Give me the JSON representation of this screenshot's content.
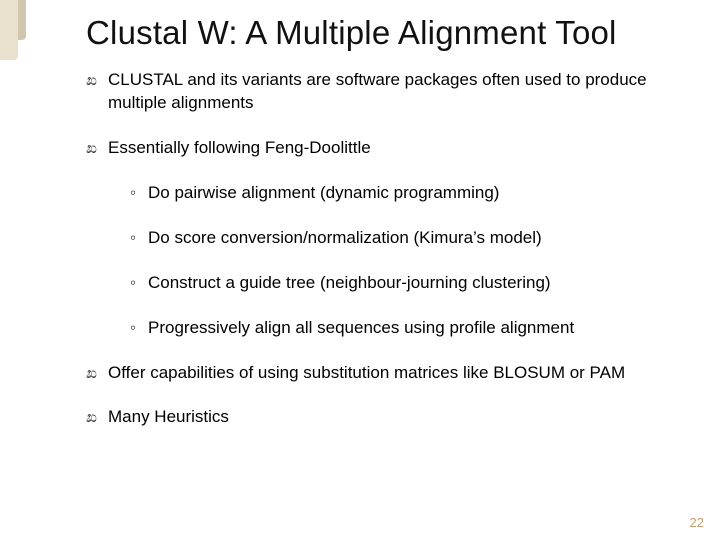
{
  "title": "Clustal W: A Multiple Alignment Tool",
  "bullets": {
    "b0": "CLUSTAL and its variants are software packages often used to produce multiple alignments",
    "b1": "Essentially following Feng-Doolittle",
    "b1_sub": {
      "s0": "Do pairwise alignment (dynamic programming)",
      "s1": "Do score conversion/normalization (Kimura’s model)",
      "s2": "Construct a guide tree (neighbour-journing clustering)",
      "s3": "Progressively align all sequences using profile alignment"
    },
    "b2": "Offer capabilities of using substitution matrices like BLOSUM or PAM",
    "b3": "Many Heuristics"
  },
  "glyphs": {
    "level1": "ಖ",
    "level2": "◦"
  },
  "page_number": "22",
  "colors": {
    "background": "#ffffff",
    "text": "#000000",
    "pagenum": "#c49e6a",
    "deco_beige": "#e9e0cd",
    "deco_tan": "#d1c7ae"
  },
  "fontsize": {
    "title": 33,
    "body": 17,
    "pagenum": 13
  }
}
